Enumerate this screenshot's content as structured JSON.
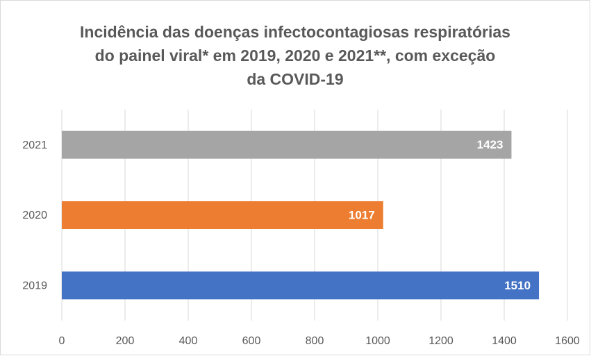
{
  "chart_data": {
    "type": "barh",
    "title": [
      "Incidência das doenças infectocontagiosas respiratórias",
      "do painel viral* em 2019, 2020 e 2021**, com exceção",
      "da COVID-19"
    ],
    "categories": [
      "2021",
      "2020",
      "2019"
    ],
    "values": [
      1423,
      1017,
      1510
    ],
    "colors": [
      "#a5a5a5",
      "#ed7d31",
      "#4472c4"
    ],
    "xlim": [
      0,
      1600
    ],
    "xticks": [
      0,
      200,
      400,
      600,
      800,
      1000,
      1200,
      1400,
      1600
    ],
    "grid": true
  }
}
